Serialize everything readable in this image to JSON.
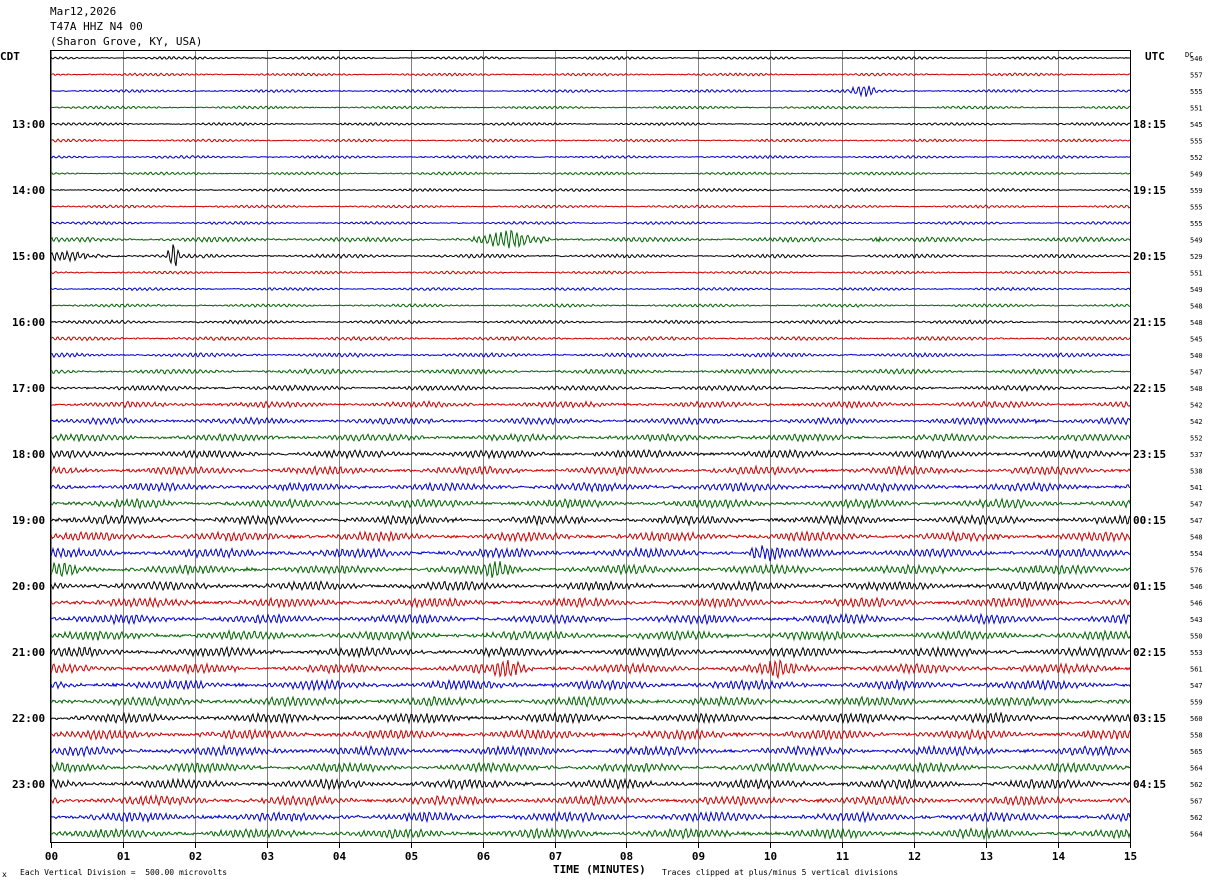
{
  "header": {
    "date": "Mar12,2026",
    "station": "T47A HHZ N4 00",
    "location": "(Sharon Grove, KY, USA)"
  },
  "axes": {
    "left_label": "CDT",
    "right_label": "UTC",
    "dc_label": "DC",
    "x_title": "TIME (MINUTES)",
    "x_ticks": [
      "00",
      "01",
      "02",
      "03",
      "04",
      "05",
      "06",
      "07",
      "08",
      "09",
      "10",
      "11",
      "12",
      "13",
      "14",
      "15"
    ]
  },
  "footer": {
    "scale_note": "Each Vertical Division =  500.00 microvolts",
    "clip_note": "Traces clipped at plus/minus 5 vertical divisions",
    "corner_mark": "x"
  },
  "colors": {
    "trace_cycle": [
      "#000000",
      "#cc0000",
      "#0000cc",
      "#006600"
    ],
    "grid": "#808080",
    "frame": "#000000"
  },
  "chart_data": {
    "type": "helicorder",
    "title": "T47A HHZ N4 00",
    "xlabel": "TIME (MINUTES)",
    "xlim": [
      0,
      15
    ],
    "minutes_per_line": 15,
    "lines_per_hour": 4,
    "grid": true,
    "left_hour_labels": [
      "13:00",
      "14:00",
      "15:00",
      "16:00",
      "17:00",
      "18:00",
      "19:00",
      "20:00",
      "21:00",
      "22:00",
      "23:00"
    ],
    "right_hour_labels": [
      "18:15",
      "19:15",
      "20:15",
      "21:15",
      "22:15",
      "23:15",
      "00:15",
      "01:15",
      "02:15",
      "03:15",
      "04:15"
    ],
    "first_hour_label_line": 4,
    "dc_values": [
      546,
      557,
      555,
      551,
      545,
      555,
      552,
      549,
      559,
      555,
      555,
      549,
      529,
      551,
      549,
      548,
      548,
      545,
      540,
      547,
      548,
      542,
      542,
      552,
      537,
      538,
      541,
      547,
      547,
      548,
      554,
      576,
      546,
      546,
      543,
      550,
      553,
      561,
      547,
      559,
      560,
      558,
      565,
      564,
      562,
      567,
      562,
      564
    ],
    "noise_levels": [
      1.2,
      1.2,
      1.2,
      1.2,
      1.2,
      1.2,
      1.2,
      1.2,
      1.2,
      1.2,
      1.2,
      2.0,
      1.6,
      1.2,
      1.2,
      1.3,
      1.5,
      1.6,
      1.7,
      2.0,
      2.2,
      2.6,
      2.7,
      3.0,
      3.3,
      3.5,
      3.5,
      3.6,
      3.7,
      3.8,
      3.8,
      3.8,
      3.8,
      3.8,
      3.8,
      3.9,
      3.9,
      3.9,
      3.9,
      3.9,
      3.9,
      3.9,
      3.9,
      3.9,
      3.9,
      3.9,
      3.9,
      3.9
    ],
    "events": [
      {
        "line": 2,
        "minute": 11.3,
        "amplitude": 6,
        "duration_min": 0.2
      },
      {
        "line": 11,
        "minute": 6.4,
        "amplitude": 8,
        "duration_min": 0.6
      },
      {
        "line": 11,
        "minute": 11.5,
        "amplitude": 6,
        "duration_min": 0.3
      },
      {
        "line": 12,
        "minute": 0.2,
        "amplitude": 5,
        "duration_min": 1.0
      },
      {
        "line": 12,
        "minute": 1.7,
        "amplitude": 12,
        "duration_min": 0.1
      },
      {
        "line": 22,
        "minute": 13.7,
        "amplitude": 6,
        "duration_min": 0.5
      },
      {
        "line": 30,
        "minute": 9.9,
        "amplitude": 9,
        "duration_min": 0.4
      },
      {
        "line": 31,
        "minute": 0.2,
        "amplitude": 8,
        "duration_min": 0.4
      },
      {
        "line": 31,
        "minute": 6.2,
        "amplitude": 9,
        "duration_min": 0.3
      },
      {
        "line": 37,
        "minute": 6.4,
        "amplitude": 9,
        "duration_min": 0.4
      },
      {
        "line": 37,
        "minute": 10.1,
        "amplitude": 8,
        "duration_min": 0.4
      }
    ]
  }
}
